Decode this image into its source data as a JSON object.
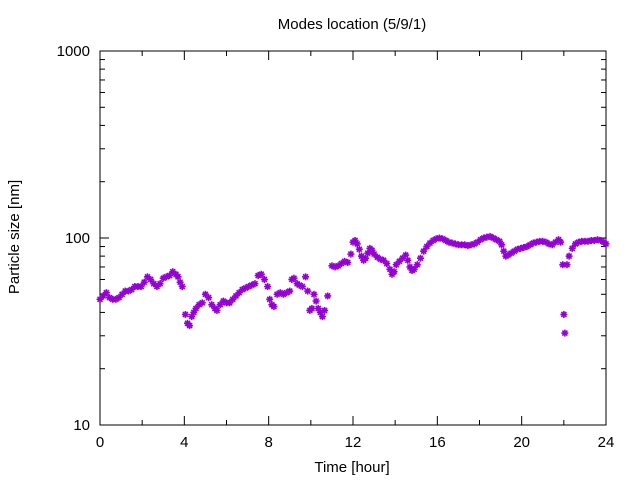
{
  "chart_data": {
    "type": "scatter",
    "title": "Modes location (5/9/1)",
    "xlabel": "Time [hour]",
    "ylabel": "Particle size [nm]",
    "xlim": [
      0,
      24
    ],
    "ylim": [
      10,
      1000
    ],
    "yscale": "log",
    "x_ticks": [
      0,
      4,
      8,
      12,
      16,
      20,
      24
    ],
    "x_tick_labels": [
      "0",
      "4",
      "8",
      "12",
      "16",
      "20",
      "24"
    ],
    "x_minor_ticks": [
      2,
      6,
      10,
      14,
      18,
      22
    ],
    "y_ticks": [
      10,
      100,
      1000
    ],
    "y_tick_labels": [
      "10",
      "100",
      "1000"
    ],
    "grid": false,
    "legend": "none",
    "marker_color": "#9400d3",
    "marker": "asterisk",
    "points": [
      [
        0.0,
        47
      ],
      [
        0.15,
        49
      ],
      [
        0.3,
        51
      ],
      [
        0.45,
        48
      ],
      [
        0.6,
        47
      ],
      [
        0.75,
        47
      ],
      [
        0.9,
        48
      ],
      [
        1.05,
        50
      ],
      [
        1.2,
        52
      ],
      [
        1.35,
        52
      ],
      [
        1.5,
        53
      ],
      [
        1.65,
        55
      ],
      [
        1.8,
        55
      ],
      [
        1.95,
        55
      ],
      [
        2.1,
        58
      ],
      [
        2.25,
        62
      ],
      [
        2.4,
        60
      ],
      [
        2.55,
        57
      ],
      [
        2.7,
        55
      ],
      [
        2.85,
        57
      ],
      [
        3.0,
        61
      ],
      [
        3.15,
        62
      ],
      [
        3.3,
        63
      ],
      [
        3.45,
        66
      ],
      [
        3.6,
        64
      ],
      [
        3.7,
        62
      ],
      [
        3.8,
        58
      ],
      [
        3.9,
        55
      ],
      [
        4.05,
        39
      ],
      [
        4.15,
        35
      ],
      [
        4.25,
        34
      ],
      [
        4.35,
        38
      ],
      [
        4.45,
        40
      ],
      [
        4.55,
        42
      ],
      [
        4.7,
        44
      ],
      [
        4.85,
        45
      ],
      [
        5.0,
        50
      ],
      [
        5.15,
        48
      ],
      [
        5.3,
        44
      ],
      [
        5.45,
        42
      ],
      [
        5.55,
        41
      ],
      [
        5.7,
        44
      ],
      [
        5.85,
        46
      ],
      [
        6.0,
        45
      ],
      [
        6.15,
        45
      ],
      [
        6.3,
        47
      ],
      [
        6.45,
        49
      ],
      [
        6.6,
        51
      ],
      [
        6.75,
        53
      ],
      [
        6.9,
        54
      ],
      [
        7.05,
        55
      ],
      [
        7.2,
        56
      ],
      [
        7.35,
        57
      ],
      [
        7.5,
        63
      ],
      [
        7.65,
        64
      ],
      [
        7.8,
        60
      ],
      [
        7.95,
        55
      ],
      [
        8.05,
        47
      ],
      [
        8.15,
        44
      ],
      [
        8.25,
        43
      ],
      [
        8.4,
        50
      ],
      [
        8.55,
        51
      ],
      [
        8.7,
        50
      ],
      [
        8.85,
        51
      ],
      [
        9.0,
        52
      ],
      [
        9.1,
        60
      ],
      [
        9.2,
        61
      ],
      [
        9.35,
        57
      ],
      [
        9.45,
        56
      ],
      [
        9.6,
        55
      ],
      [
        9.75,
        62
      ],
      [
        9.85,
        52
      ],
      [
        9.95,
        41
      ],
      [
        10.05,
        42
      ],
      [
        10.15,
        50
      ],
      [
        10.25,
        46
      ],
      [
        10.35,
        42
      ],
      [
        10.45,
        40
      ],
      [
        10.55,
        38
      ],
      [
        10.65,
        41
      ],
      [
        10.8,
        49
      ],
      [
        11.0,
        71
      ],
      [
        11.15,
        70
      ],
      [
        11.3,
        71
      ],
      [
        11.45,
        73
      ],
      [
        11.6,
        75
      ],
      [
        11.75,
        74
      ],
      [
        11.9,
        82
      ],
      [
        12.0,
        95
      ],
      [
        12.1,
        97
      ],
      [
        12.2,
        93
      ],
      [
        12.3,
        87
      ],
      [
        12.4,
        80
      ],
      [
        12.5,
        76
      ],
      [
        12.6,
        78
      ],
      [
        12.7,
        83
      ],
      [
        12.8,
        88
      ],
      [
        12.9,
        86
      ],
      [
        13.0,
        82
      ],
      [
        13.15,
        79
      ],
      [
        13.3,
        77
      ],
      [
        13.45,
        76
      ],
      [
        13.6,
        73
      ],
      [
        13.75,
        68
      ],
      [
        13.85,
        64
      ],
      [
        13.95,
        66
      ],
      [
        14.05,
        72
      ],
      [
        14.2,
        75
      ],
      [
        14.35,
        78
      ],
      [
        14.5,
        81
      ],
      [
        14.6,
        76
      ],
      [
        14.7,
        70
      ],
      [
        14.8,
        67
      ],
      [
        14.9,
        68
      ],
      [
        15.05,
        72
      ],
      [
        15.2,
        78
      ],
      [
        15.35,
        85
      ],
      [
        15.5,
        90
      ],
      [
        15.65,
        94
      ],
      [
        15.8,
        97
      ],
      [
        15.95,
        99
      ],
      [
        16.1,
        100
      ],
      [
        16.25,
        99
      ],
      [
        16.4,
        97
      ],
      [
        16.55,
        95
      ],
      [
        16.7,
        94
      ],
      [
        16.85,
        93
      ],
      [
        17.0,
        92
      ],
      [
        17.15,
        92
      ],
      [
        17.3,
        92
      ],
      [
        17.45,
        91
      ],
      [
        17.6,
        92
      ],
      [
        17.75,
        93
      ],
      [
        17.9,
        95
      ],
      [
        18.05,
        98
      ],
      [
        18.2,
        100
      ],
      [
        18.35,
        101
      ],
      [
        18.5,
        102
      ],
      [
        18.65,
        100
      ],
      [
        18.8,
        98
      ],
      [
        18.95,
        96
      ],
      [
        19.05,
        92
      ],
      [
        19.15,
        85
      ],
      [
        19.25,
        80
      ],
      [
        19.35,
        81
      ],
      [
        19.5,
        83
      ],
      [
        19.65,
        85
      ],
      [
        19.8,
        87
      ],
      [
        19.95,
        88
      ],
      [
        20.1,
        89
      ],
      [
        20.25,
        90
      ],
      [
        20.4,
        92
      ],
      [
        20.55,
        94
      ],
      [
        20.7,
        95
      ],
      [
        20.85,
        96
      ],
      [
        21.0,
        96
      ],
      [
        21.15,
        95
      ],
      [
        21.3,
        93
      ],
      [
        21.45,
        92
      ],
      [
        21.6,
        95
      ],
      [
        21.75,
        98
      ],
      [
        21.85,
        95
      ],
      [
        21.95,
        72
      ],
      [
        22.0,
        39
      ],
      [
        22.05,
        31
      ],
      [
        22.15,
        72
      ],
      [
        22.25,
        80
      ],
      [
        22.4,
        88
      ],
      [
        22.55,
        93
      ],
      [
        22.7,
        95
      ],
      [
        22.85,
        96
      ],
      [
        23.0,
        96
      ],
      [
        23.15,
        96
      ],
      [
        23.3,
        97
      ],
      [
        23.45,
        97
      ],
      [
        23.6,
        98
      ],
      [
        23.75,
        97
      ],
      [
        23.9,
        95
      ],
      [
        24.0,
        93
      ]
    ]
  }
}
